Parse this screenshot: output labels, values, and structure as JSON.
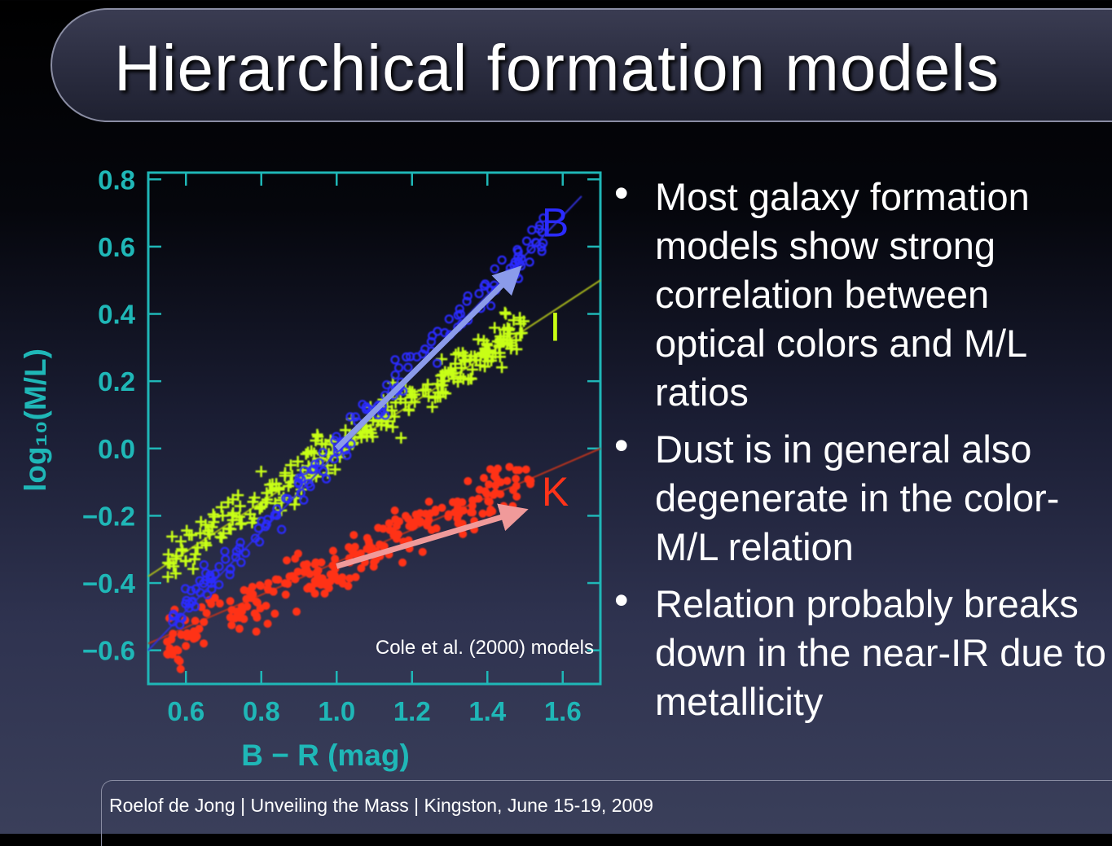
{
  "slide": {
    "title": "Hierarchical formation models",
    "footer": "Roelof de Jong  |  Unveiling the Mass  |   Kingston, June 15-19, 2009"
  },
  "bullets": [
    {
      "text": "Most galaxy formation models show strong correlation between optical colors and M/L ratios"
    },
    {
      "text": "Dust is in general also degenerate in the color-M/L relation"
    },
    {
      "text": "Relation probably breaks down in the near-IR due to metallicity"
    }
  ],
  "colors": {
    "frame": "#1fb7b7",
    "B": "#2b2bff",
    "I": "#c8ff14",
    "K": "#ff3319",
    "B_arrow": "#8b9bea",
    "K_arrow": "#f09a9a",
    "B_line": "#2f2fd6",
    "I_line": "#a8b81a",
    "K_line": "#b8331e"
  },
  "chart_data": {
    "type": "scatter",
    "xlabel": "B − R (mag)",
    "ylabel": "log₁₀(M/L)",
    "xlim": [
      0.5,
      1.7
    ],
    "ylim": [
      -0.7,
      0.82
    ],
    "xticks": [
      0.6,
      0.8,
      1.0,
      1.2,
      1.4,
      1.6
    ],
    "xtick_labels": [
      "0.6",
      "0.8",
      "1.0",
      "1.2",
      "1.4",
      "1.6"
    ],
    "yticks": [
      0.8,
      0.6,
      0.4,
      0.2,
      0.0,
      -0.2,
      -0.4,
      -0.6
    ],
    "ytick_labels": [
      "0.8",
      "0.6",
      "0.4",
      "0.2",
      "0.0",
      "−0.2",
      "−0.4",
      "−0.6"
    ],
    "annotation": "Cole et al. (2000) models",
    "series": [
      {
        "name": "B",
        "marker": "circle",
        "fit_line": [
          [
            0.5,
            -0.6
          ],
          [
            1.65,
            0.75
          ]
        ],
        "arrow": [
          [
            1.0,
            0.0
          ],
          [
            1.47,
            0.52
          ]
        ],
        "trend": {
          "slope": 1.17,
          "intercept": -1.17,
          "x_range": [
            0.55,
            1.55
          ],
          "scatter": 0.05
        },
        "n": 170
      },
      {
        "name": "I",
        "marker": "plus",
        "fit_line": [
          [
            0.5,
            -0.38
          ],
          [
            1.7,
            0.5
          ]
        ],
        "arrow": null,
        "trend": {
          "slope": 0.73,
          "intercept": -0.73,
          "x_range": [
            0.55,
            1.5
          ],
          "scatter": 0.055
        },
        "n": 260
      },
      {
        "name": "K",
        "marker": "circle-filled",
        "fit_line": [
          [
            0.5,
            -0.58
          ],
          [
            1.7,
            0.0
          ]
        ],
        "arrow": [
          [
            1.0,
            -0.35
          ],
          [
            1.48,
            -0.19
          ]
        ],
        "trend": {
          "slope": 0.5,
          "intercept": -0.85,
          "x_range": [
            0.55,
            1.52
          ],
          "scatter": 0.06
        },
        "n": 250
      }
    ]
  }
}
